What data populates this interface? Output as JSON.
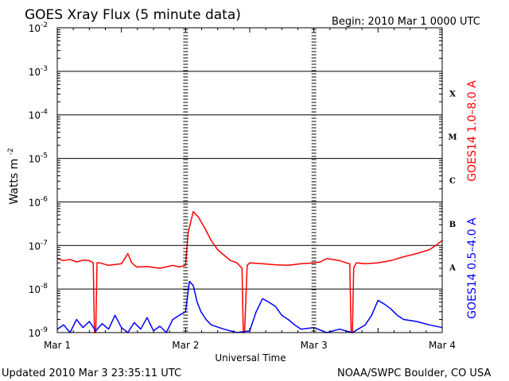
{
  "header": {
    "title": "GOES Xray Flux (5 minute data)",
    "begin": "Begin:  2010 Mar 1 0000 UTC"
  },
  "footer": {
    "updated": "Updated 2010 Mar  3 23:35:11 UTC",
    "source": "NOAA/SWPC Boulder, CO USA"
  },
  "colors": {
    "long_channel": "#ff0000",
    "short_channel": "#0000ff",
    "axis": "#000000",
    "background": "#ffffff"
  },
  "chart_data": {
    "type": "line",
    "title": "GOES Xray Flux (5 minute data)",
    "xlabel": "Universal Time",
    "ylabel": "Watts m",
    "ylabel_sup": "-2",
    "yscale": "log",
    "ylim": [
      1e-09,
      0.01
    ],
    "xlim": [
      0,
      3
    ],
    "x_unit": "days since 2010 Mar 1 0000 UTC",
    "x_ticks": [
      {
        "value": 0,
        "label": "Mar 1"
      },
      {
        "value": 1,
        "label": "Mar 2"
      },
      {
        "value": 2,
        "label": "Mar 3"
      },
      {
        "value": 3,
        "label": "Mar 4"
      }
    ],
    "y_ticks": [
      {
        "exp": -2,
        "base": "10",
        "sup": "-2"
      },
      {
        "exp": -3,
        "base": "10",
        "sup": "-3"
      },
      {
        "exp": -4,
        "base": "10",
        "sup": "-4"
      },
      {
        "exp": -5,
        "base": "10",
        "sup": "-5"
      },
      {
        "exp": -6,
        "base": "10",
        "sup": "-6"
      },
      {
        "exp": -7,
        "base": "10",
        "sup": "-7"
      },
      {
        "exp": -8,
        "base": "10",
        "sup": "-8"
      },
      {
        "exp": -9,
        "base": "10",
        "sup": "-9"
      }
    ],
    "flare_classes": [
      {
        "label": "X",
        "exp": -3.5
      },
      {
        "label": "M",
        "exp": -4.5
      },
      {
        "label": "C",
        "exp": -5.5
      },
      {
        "label": "B",
        "exp": -6.5
      },
      {
        "label": "A",
        "exp": -7.5
      }
    ],
    "grid": true,
    "series": [
      {
        "name": "GOES14 1.0–8.0 A",
        "color": "#ff0000",
        "x": [
          0.0,
          0.05,
          0.1,
          0.15,
          0.2,
          0.25,
          0.28,
          0.29,
          0.3,
          0.31,
          0.33,
          0.4,
          0.5,
          0.55,
          0.58,
          0.62,
          0.7,
          0.8,
          0.9,
          0.95,
          1.0,
          1.02,
          1.06,
          1.1,
          1.15,
          1.2,
          1.25,
          1.3,
          1.35,
          1.4,
          1.44,
          1.45,
          1.46,
          1.48,
          1.5,
          1.6,
          1.7,
          1.8,
          1.9,
          2.0,
          2.05,
          2.1,
          2.2,
          2.25,
          2.28,
          2.29,
          2.3,
          2.31,
          2.33,
          2.4,
          2.5,
          2.6,
          2.7,
          2.8,
          2.9,
          2.95,
          3.0
        ],
        "y": [
          5e-08,
          4.5e-08,
          4.8e-08,
          4.2e-08,
          4.6e-08,
          4.5e-08,
          4e-08,
          1e-09,
          1e-09,
          4e-08,
          4e-08,
          3.5e-08,
          3.8e-08,
          6.5e-08,
          4e-08,
          3.2e-08,
          3.3e-08,
          3e-08,
          3.5e-08,
          3.2e-08,
          3.5e-08,
          2e-07,
          6e-07,
          4.5e-07,
          2.5e-07,
          1.3e-07,
          8e-08,
          6e-08,
          4.5e-08,
          4e-08,
          3e-08,
          1e-09,
          1e-09,
          3.5e-08,
          4e-08,
          3.8e-08,
          3.6e-08,
          3.5e-08,
          3.8e-08,
          4e-08,
          4.2e-08,
          5e-08,
          4.5e-08,
          4e-08,
          3.8e-08,
          1e-09,
          1e-09,
          3e-08,
          4e-08,
          3.8e-08,
          4e-08,
          4.5e-08,
          5.5e-08,
          6.5e-08,
          8e-08,
          1e-07,
          1.3e-07
        ]
      },
      {
        "name": "GOES14 0.5–4.0 A",
        "color": "#0000ff",
        "x": [
          0.0,
          0.05,
          0.1,
          0.15,
          0.2,
          0.25,
          0.3,
          0.35,
          0.4,
          0.45,
          0.5,
          0.55,
          0.6,
          0.65,
          0.7,
          0.75,
          0.8,
          0.85,
          0.9,
          0.95,
          1.0,
          1.03,
          1.06,
          1.09,
          1.12,
          1.16,
          1.2,
          1.3,
          1.4,
          1.5,
          1.55,
          1.6,
          1.65,
          1.7,
          1.75,
          1.8,
          1.85,
          1.9,
          2.0,
          2.1,
          2.2,
          2.3,
          2.4,
          2.45,
          2.5,
          2.55,
          2.6,
          2.65,
          2.7,
          2.8,
          2.9,
          3.0
        ],
        "y": [
          1.2e-09,
          1.5e-09,
          1e-09,
          2e-09,
          1.3e-09,
          1.8e-09,
          1.1e-09,
          1.6e-09,
          1.2e-09,
          2.5e-09,
          1.3e-09,
          1e-09,
          1.7e-09,
          1.2e-09,
          2.2e-09,
          1.1e-09,
          1.4e-09,
          1e-09,
          2e-09,
          2.5e-09,
          3e-09,
          1.5e-08,
          1.2e-08,
          5e-09,
          3e-09,
          2e-09,
          1.5e-09,
          1.2e-09,
          1e-09,
          1.1e-09,
          3e-09,
          6e-09,
          5e-09,
          4e-09,
          2.5e-09,
          2e-09,
          1.5e-09,
          1.2e-09,
          1.3e-09,
          1e-09,
          1.2e-09,
          1e-09,
          1.5e-09,
          2.5e-09,
          5.5e-09,
          4.5e-09,
          3.5e-09,
          2.5e-09,
          2e-09,
          1.8e-09,
          1.5e-09,
          1.3e-09
        ]
      }
    ]
  }
}
